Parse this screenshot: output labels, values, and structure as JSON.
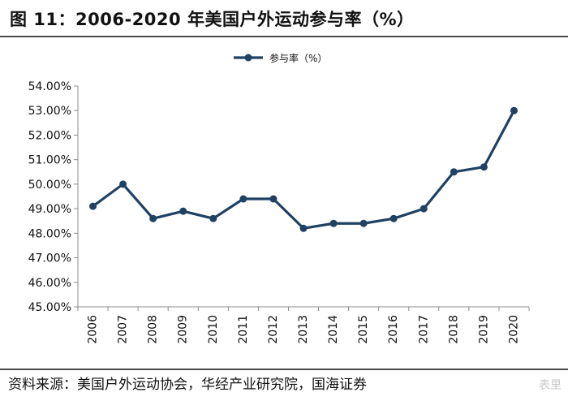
{
  "header": {
    "title": "图 11：2006-2020 年美国户外运动参与率（%）"
  },
  "footer": {
    "source": "资料来源：美国户外运动协会，华经产业研究院，国海证券"
  },
  "watermark": "表里",
  "colors": {
    "series": "#1f4164",
    "axis": "#8c8c8c",
    "text": "#111111"
  },
  "chart_data": {
    "type": "line",
    "categories": [
      "2006",
      "2007",
      "2008",
      "2009",
      "2010",
      "2011",
      "2012",
      "2013",
      "2014",
      "2015",
      "2016",
      "2017",
      "2018",
      "2019",
      "2020"
    ],
    "series": [
      {
        "name": "参与率（%）",
        "values": [
          49.1,
          50.0,
          48.6,
          48.9,
          48.6,
          49.4,
          49.4,
          48.2,
          48.4,
          48.4,
          48.6,
          49.0,
          50.5,
          50.7,
          53.0
        ]
      }
    ],
    "ylim": [
      45,
      54
    ],
    "yticks": [
      "45.00%",
      "46.00%",
      "47.00%",
      "48.00%",
      "49.00%",
      "50.00%",
      "51.00%",
      "52.00%",
      "53.00%",
      "54.00%"
    ],
    "grid": false,
    "legend": "top-center",
    "xlabel": "",
    "ylabel": ""
  }
}
